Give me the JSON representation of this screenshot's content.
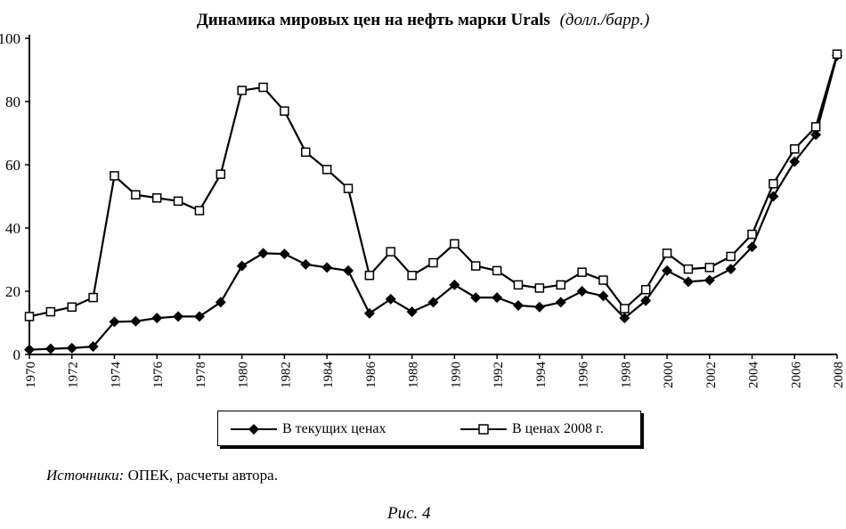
{
  "chart_data": {
    "type": "line",
    "title_main": "Динамика мировых цен на нефть марки Urals",
    "title_unit": "(долл./барр.)",
    "xlabel": "",
    "ylabel": "",
    "x": [
      1970,
      1971,
      1972,
      1973,
      1974,
      1975,
      1976,
      1977,
      1978,
      1979,
      1980,
      1981,
      1982,
      1983,
      1984,
      1985,
      1986,
      1987,
      1988,
      1989,
      1990,
      1991,
      1992,
      1993,
      1994,
      1995,
      1996,
      1997,
      1998,
      1999,
      2000,
      2001,
      2002,
      2003,
      2004,
      2005,
      2006,
      2007,
      2008
    ],
    "xticks": [
      "1970",
      "1972",
      "1974",
      "1976",
      "1978",
      "1980",
      "1982",
      "1984",
      "1986",
      "1988",
      "1990",
      "1992",
      "1994",
      "1996",
      "1998",
      "2000",
      "2002",
      "2004",
      "2006",
      "2008"
    ],
    "yticks": [
      "0",
      "20",
      "40",
      "60",
      "80",
      "100"
    ],
    "ylim": [
      0,
      100
    ],
    "xlim": [
      1970,
      2008
    ],
    "grid": false,
    "legend_position": "bottom",
    "series": [
      {
        "name": "В текущих ценах",
        "marker": "filled-diamond",
        "values": [
          1.5,
          1.8,
          2,
          2.5,
          10.3,
          10.5,
          11.5,
          12,
          12,
          16.5,
          28,
          32,
          31.8,
          28.5,
          27.5,
          26.5,
          13,
          17.5,
          13.5,
          16.5,
          22,
          18,
          18,
          15.5,
          15,
          16.5,
          20,
          18.5,
          11.5,
          17,
          26.5,
          23,
          23.5,
          27,
          34,
          50,
          61,
          69.5,
          94.5
        ]
      },
      {
        "name": "В ценах 2008 г.",
        "marker": "open-square",
        "values": [
          12,
          13.5,
          15,
          18,
          56.5,
          50.5,
          49.5,
          48.5,
          45.5,
          57,
          83.5,
          84.5,
          77,
          64,
          58.5,
          52.5,
          25,
          32.5,
          25,
          29,
          35,
          28,
          26.5,
          22,
          21,
          22,
          26,
          23.5,
          14.5,
          20.5,
          32,
          27,
          27.5,
          31,
          38,
          54,
          65,
          72,
          95
        ]
      }
    ]
  },
  "source": {
    "label": "Источники:",
    "text": " ОПЕК, расчеты автора."
  },
  "figure_caption": "Рис. 4",
  "colors": {
    "line": "#000000",
    "background": "#ffffff"
  }
}
